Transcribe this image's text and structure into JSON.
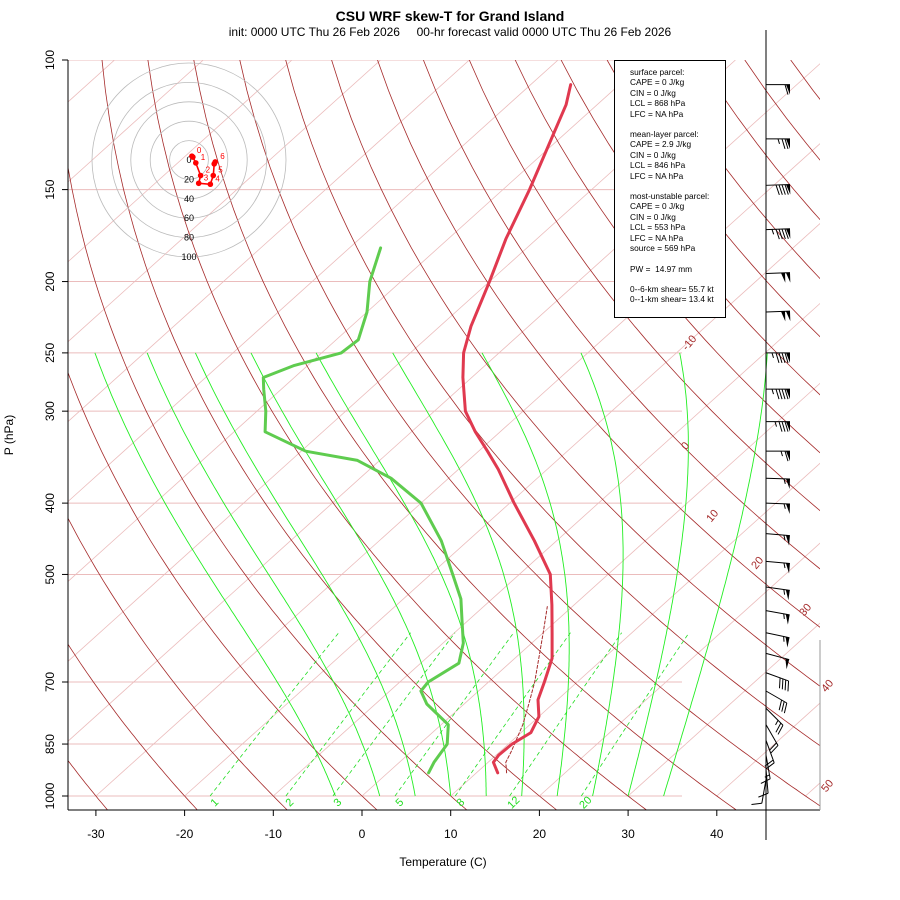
{
  "header": {
    "title": "CSU WRF skew-T for Grand Island",
    "subtitle": "init: 0000 UTC Thu 26 Feb 2026     00-hr forecast valid 0000 UTC Thu 26 Feb 2026"
  },
  "info_box": {
    "surface_title": "surface parcel:",
    "surface_lines": [
      "CAPE = 0 J/kg",
      "CIN = 0 J/kg",
      "LCL = 868 hPa",
      "LFC = NA hPa"
    ],
    "mean_title": "mean-layer parcel:",
    "mean_lines": [
      "CAPE = 2.9 J/kg",
      "CIN = 0 J/kg",
      "LCL = 846 hPa",
      "LFC = NA hPa"
    ],
    "mu_title": "most-unstable parcel:",
    "mu_lines": [
      "CAPE = 0 J/kg",
      "CIN = 0 J/kg",
      "LCL = 553 hPa",
      "LFC = NA hPa",
      "source = 569 hPa"
    ],
    "pw_line": "PW =  14.97 mm",
    "shear_lines": [
      "0--6-km shear= 55.7 kt",
      "0--1-km shear= 13.4 kt"
    ]
  },
  "colors": {
    "temperature": "#e0394f",
    "dewpoint": "#5fcc4f",
    "isotherm": "#ebbcbc",
    "isobar": "#ebbcbc",
    "dry_adiabat": "#a52a2a",
    "moist_adiabat": "#22ee22",
    "mixing_ratio": "#22dd22",
    "parcel": "#a52a2a",
    "hodograph": "#ff0000",
    "hodo_ring": "#bbbbbb"
  },
  "chart_data": {
    "type": "skew-t",
    "xlabel": "Temperature (C)",
    "ylabel": "P (hPa)",
    "x_ticks": [
      -30,
      -20,
      -10,
      0,
      10,
      20,
      30,
      40
    ],
    "p_ticks": [
      100,
      150,
      200,
      250,
      300,
      400,
      500,
      700,
      850,
      1000
    ],
    "x_range": [
      -33,
      40
    ],
    "p_range": [
      100,
      1000
    ],
    "dry_adiabat_labels": [
      "-10",
      "0",
      "10",
      "20",
      "30",
      "40",
      "50"
    ],
    "mixing_ratio_labels": [
      "1",
      "2",
      "3",
      "5",
      "8",
      "12",
      "20"
    ],
    "temperature": [
      {
        "p": 930,
        "t": 12.4
      },
      {
        "p": 900,
        "t": 10.6
      },
      {
        "p": 880,
        "t": 10.3
      },
      {
        "p": 850,
        "t": 10.4
      },
      {
        "p": 820,
        "t": 11.1
      },
      {
        "p": 780,
        "t": 10.0
      },
      {
        "p": 740,
        "t": 7.8
      },
      {
        "p": 700,
        "t": 6.3
      },
      {
        "p": 650,
        "t": 4.2
      },
      {
        "p": 600,
        "t": 1.0
      },
      {
        "p": 550,
        "t": -2.5
      },
      {
        "p": 500,
        "t": -6.5
      },
      {
        "p": 450,
        "t": -12.5
      },
      {
        "p": 400,
        "t": -19.5
      },
      {
        "p": 360,
        "t": -25.5
      },
      {
        "p": 340,
        "t": -29.0
      },
      {
        "p": 320,
        "t": -32.8
      },
      {
        "p": 300,
        "t": -36.5
      },
      {
        "p": 270,
        "t": -41.0
      },
      {
        "p": 250,
        "t": -44.0
      },
      {
        "p": 230,
        "t": -46.5
      },
      {
        "p": 200,
        "t": -50.0
      },
      {
        "p": 175,
        "t": -53.5
      },
      {
        "p": 150,
        "t": -57.0
      },
      {
        "p": 130,
        "t": -60.5
      },
      {
        "p": 115,
        "t": -63.5
      },
      {
        "p": 108,
        "t": -65.5
      }
    ],
    "dewpoint": [
      {
        "p": 930,
        "t": 4.6
      },
      {
        "p": 900,
        "t": 3.9
      },
      {
        "p": 850,
        "t": 3.1
      },
      {
        "p": 800,
        "t": 0.8
      },
      {
        "p": 750,
        "t": -4.2
      },
      {
        "p": 720,
        "t": -6.5
      },
      {
        "p": 700,
        "t": -6.8
      },
      {
        "p": 660,
        "t": -5.7
      },
      {
        "p": 620,
        "t": -7.7
      },
      {
        "p": 580,
        "t": -10.5
      },
      {
        "p": 540,
        "t": -13.5
      },
      {
        "p": 500,
        "t": -17.5
      },
      {
        "p": 450,
        "t": -23.0
      },
      {
        "p": 400,
        "t": -30.0
      },
      {
        "p": 370,
        "t": -36.5
      },
      {
        "p": 350,
        "t": -42.5
      },
      {
        "p": 340,
        "t": -49.5
      },
      {
        "p": 320,
        "t": -56.5
      },
      {
        "p": 300,
        "t": -59.0
      },
      {
        "p": 280,
        "t": -62.0
      },
      {
        "p": 270,
        "t": -63.5
      },
      {
        "p": 260,
        "t": -61.5
      },
      {
        "p": 250,
        "t": -57.8
      },
      {
        "p": 240,
        "t": -57.5
      },
      {
        "p": 220,
        "t": -60.0
      },
      {
        "p": 200,
        "t": -63.5
      },
      {
        "p": 180,
        "t": -66.5
      }
    ],
    "parcel": [
      {
        "p": 930,
        "t": 13.4
      },
      {
        "p": 900,
        "t": 12.0
      },
      {
        "p": 868,
        "t": 11.2
      },
      {
        "p": 800,
        "t": 9.2
      },
      {
        "p": 750,
        "t": 7.3
      },
      {
        "p": 700,
        "t": 5.2
      },
      {
        "p": 650,
        "t": 2.7
      },
      {
        "p": 600,
        "t": 0.0
      },
      {
        "p": 553,
        "t": -2.8
      }
    ],
    "hodograph": [
      {
        "u": 3,
        "v": 4,
        "label": "0"
      },
      {
        "u": 4,
        "v": 3,
        "label": ""
      },
      {
        "u": 7,
        "v": -3,
        "label": "1"
      },
      {
        "u": 12,
        "v": -16,
        "label": "2"
      },
      {
        "u": 10,
        "v": -24,
        "label": "3"
      },
      {
        "u": 22,
        "v": -25,
        "label": "4"
      },
      {
        "u": 25,
        "v": -16,
        "label": "5"
      },
      {
        "u": 26,
        "v": -4,
        "label": ""
      },
      {
        "u": 27,
        "v": -2,
        "label": "6"
      }
    ],
    "hodograph_rings": [
      "20",
      "40",
      "60",
      "80",
      "100"
    ],
    "wind_barbs": [
      {
        "p": 108,
        "speed": 60,
        "dir": 270
      },
      {
        "p": 128,
        "speed": 75,
        "dir": 270
      },
      {
        "p": 148,
        "speed": 90,
        "dir": 268
      },
      {
        "p": 170,
        "speed": 95,
        "dir": 268
      },
      {
        "p": 195,
        "speed": 100,
        "dir": 268
      },
      {
        "p": 220,
        "speed": 100,
        "dir": 268
      },
      {
        "p": 250,
        "speed": 95,
        "dir": 270
      },
      {
        "p": 280,
        "speed": 95,
        "dir": 270
      },
      {
        "p": 310,
        "speed": 85,
        "dir": 270
      },
      {
        "p": 340,
        "speed": 65,
        "dir": 270
      },
      {
        "p": 370,
        "speed": 55,
        "dir": 272
      },
      {
        "p": 400,
        "speed": 55,
        "dir": 272
      },
      {
        "p": 440,
        "speed": 55,
        "dir": 275
      },
      {
        "p": 480,
        "speed": 55,
        "dir": 275
      },
      {
        "p": 520,
        "speed": 55,
        "dir": 278
      },
      {
        "p": 560,
        "speed": 55,
        "dir": 280
      },
      {
        "p": 600,
        "speed": 55,
        "dir": 282
      },
      {
        "p": 640,
        "speed": 50,
        "dir": 285
      },
      {
        "p": 680,
        "speed": 40,
        "dir": 290
      },
      {
        "p": 720,
        "speed": 30,
        "dir": 300
      },
      {
        "p": 760,
        "speed": 25,
        "dir": 315
      },
      {
        "p": 800,
        "speed": 20,
        "dir": 330
      },
      {
        "p": 840,
        "speed": 20,
        "dir": 340
      },
      {
        "p": 880,
        "speed": 15,
        "dir": 350
      },
      {
        "p": 920,
        "speed": 10,
        "dir": 355
      },
      {
        "p": 950,
        "speed": 10,
        "dir": 10
      }
    ]
  }
}
